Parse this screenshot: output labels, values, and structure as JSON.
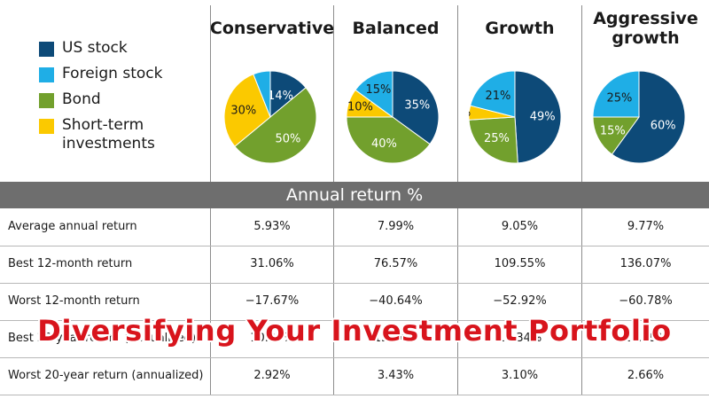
{
  "legend": [
    {
      "label": "US stock",
      "color": "#0d4a78"
    },
    {
      "label": "Foreign stock",
      "color": "#1faee6"
    },
    {
      "label": "Bond",
      "color": "#72a02d"
    },
    {
      "label": "Short-term investments",
      "color": "#fbc900"
    }
  ],
  "table": {
    "section_title": "Annual return %",
    "columns": [
      "Conservative",
      "Balanced",
      "Growth",
      "Aggressive growth"
    ],
    "rows": [
      {
        "label": "Average annual return",
        "values": [
          "5.93%",
          "7.99%",
          "9.05%",
          "9.77%"
        ]
      },
      {
        "label": "Best 12-month return",
        "values": [
          "31.06%",
          "76.57%",
          "109.55%",
          "136.07%"
        ]
      },
      {
        "label": "Worst 12-month return",
        "values": [
          "−17.67%",
          "−40.64%",
          "−52.92%",
          "−60.78%"
        ]
      },
      {
        "label": "Best 20-year return (annualized)",
        "values": [
          "10.98%",
          "13.54%",
          "15.34%",
          "18.49%"
        ]
      },
      {
        "label": "Worst 20-year return (annualized)",
        "values": [
          "2.92%",
          "3.43%",
          "3.10%",
          "2.66%"
        ]
      }
    ]
  },
  "overlay_title": "Diversifying Your Investment Portfolio",
  "chart_data": [
    {
      "type": "pie",
      "title": "Conservative",
      "labels": [
        "US stock",
        "Bond",
        "Short-term investments",
        "Foreign stock"
      ],
      "values": [
        14,
        50,
        30,
        6
      ],
      "colors": [
        "#0d4a78",
        "#72a02d",
        "#fbc900",
        "#1faee6"
      ]
    },
    {
      "type": "pie",
      "title": "Balanced",
      "labels": [
        "US stock",
        "Bond",
        "Short-term investments",
        "Foreign stock"
      ],
      "values": [
        35,
        40,
        10,
        15
      ],
      "colors": [
        "#0d4a78",
        "#72a02d",
        "#fbc900",
        "#1faee6"
      ]
    },
    {
      "type": "pie",
      "title": "Growth",
      "labels": [
        "US stock",
        "Bond",
        "Short-term investments",
        "Foreign stock"
      ],
      "values": [
        49,
        25,
        5,
        21
      ],
      "colors": [
        "#0d4a78",
        "#72a02d",
        "#fbc900",
        "#1faee6"
      ]
    },
    {
      "type": "pie",
      "title": "Aggressive growth",
      "labels": [
        "US stock",
        "Bond",
        "Foreign stock"
      ],
      "values": [
        60,
        15,
        25
      ],
      "colors": [
        "#0d4a78",
        "#72a02d",
        "#1faee6"
      ]
    }
  ]
}
